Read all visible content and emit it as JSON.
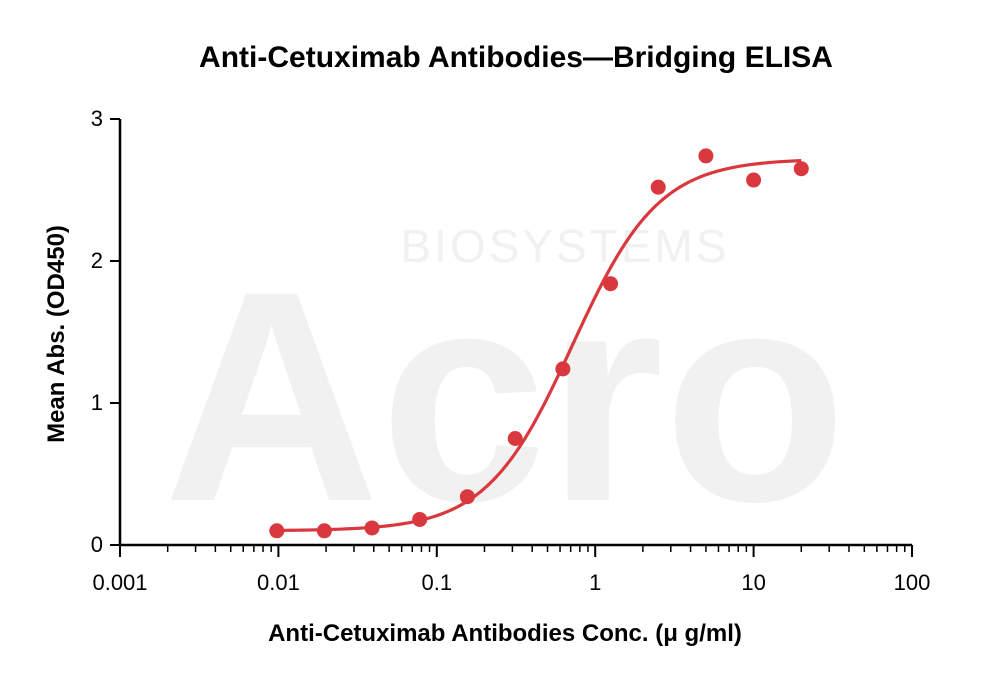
{
  "watermark": {
    "brand_name": "Acro",
    "subtitle": "BIOSYSTEMS"
  },
  "chart_data": {
    "type": "scatter",
    "title": "Anti-Cetuximab Antibodies—Bridging ELISA",
    "xlabel": "Anti-Cetuximab Antibodies Conc. (μ g/ml)",
    "ylabel": "Mean Abs. (OD450)",
    "x_scale": "log",
    "xlim": [
      0.001,
      100
    ],
    "ylim": [
      0,
      3
    ],
    "x_ticks": [
      0.001,
      0.01,
      0.1,
      1,
      10,
      100
    ],
    "x_tick_labels": [
      "0.001",
      "0.01",
      "0.1",
      "1",
      "10",
      "100"
    ],
    "y_ticks": [
      0,
      1,
      2,
      3
    ],
    "y_tick_labels": [
      "0",
      "1",
      "2",
      "3"
    ],
    "grid": false,
    "color": "#d9393e",
    "series": [
      {
        "x": [
          0.00977,
          0.0195,
          0.039,
          0.078,
          0.156,
          0.3125,
          0.625,
          1.25,
          2.5,
          5,
          10,
          20
        ],
        "y": [
          0.1,
          0.1,
          0.12,
          0.18,
          0.34,
          0.75,
          1.24,
          1.84,
          2.52,
          2.74,
          2.57,
          2.65
        ]
      }
    ],
    "fit": {
      "model": "4PL",
      "bottom": 0.1,
      "top": 2.72,
      "ec50": 0.72,
      "hill": 1.6,
      "x_range": [
        0.00977,
        20
      ]
    }
  }
}
